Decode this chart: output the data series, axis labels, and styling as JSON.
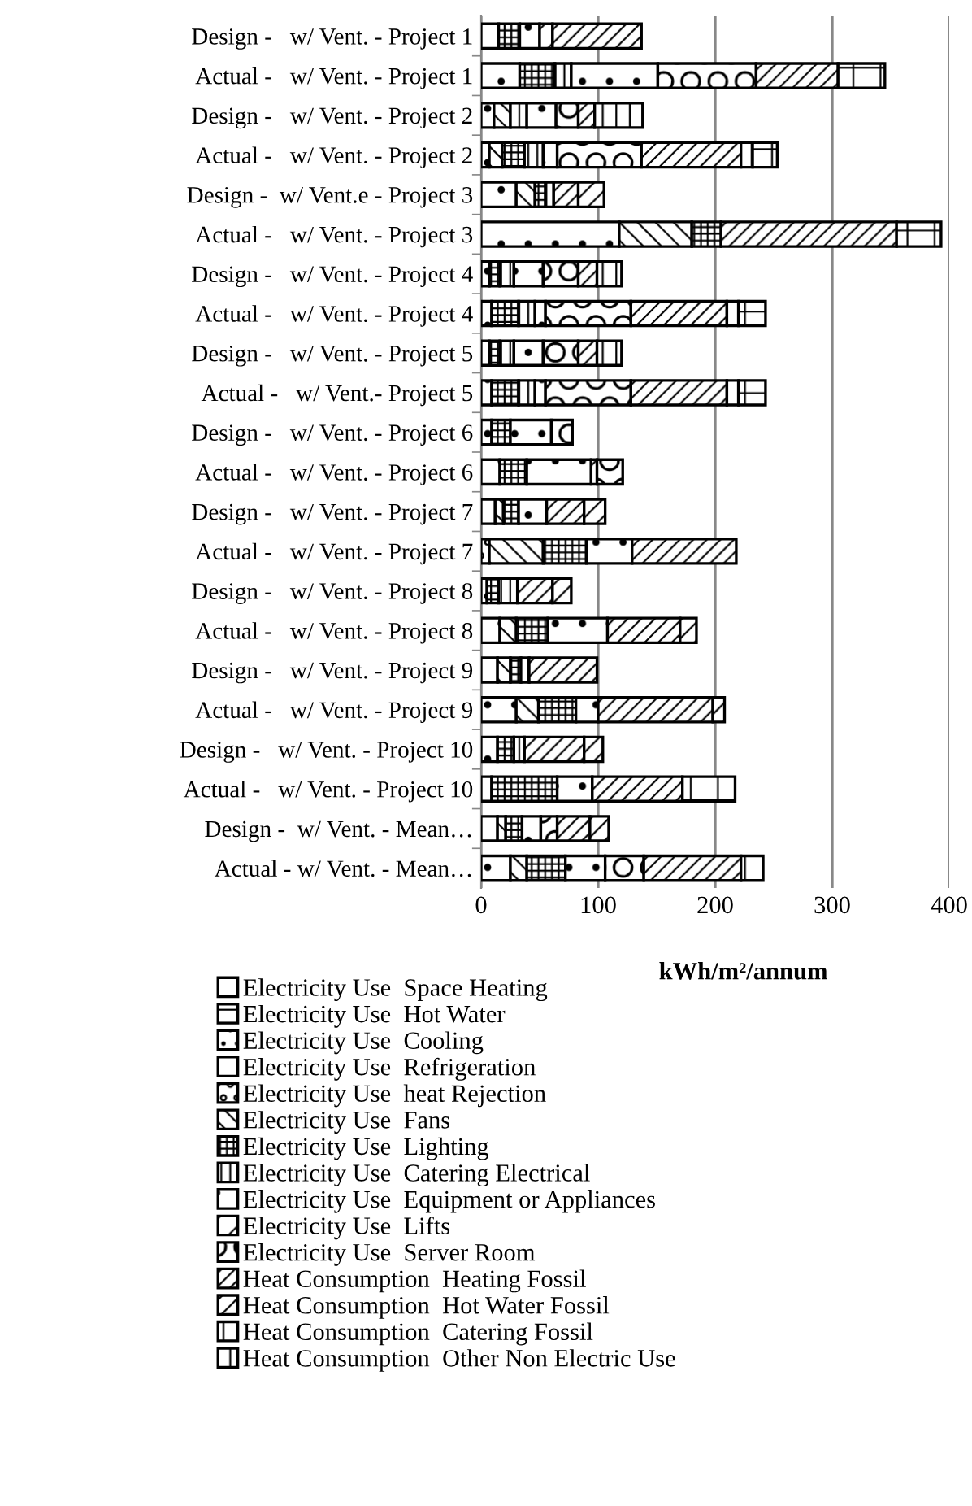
{
  "chart_data": {
    "type": "bar",
    "orientation": "horizontal",
    "stacked": true,
    "xlabel": "kWh/m²/annum",
    "xlim": [
      0,
      400
    ],
    "xticks": [
      0,
      100,
      200,
      300,
      400
    ],
    "grid": "x",
    "legend": "bottom",
    "categories": [
      "Design -   w/ Vent. - Project 1",
      "Actual -   w/ Vent. - Project 1",
      "Design -   w/ Vent. - Project 2",
      "Actual -   w/ Vent. - Project 2",
      "Design -  w/ Vent.e - Project 3",
      "Actual -   w/ Vent. - Project 3",
      "Design -   w/ Vent. - Project 4",
      "Actual -   w/ Vent. - Project 4",
      "Design -   w/ Vent. - Project 5",
      "Actual -   w/ Vent.- Project 5",
      "Design -   w/ Vent. - Project 6",
      "Actual -   w/ Vent. - Project 6",
      "Design -   w/ Vent. - Project 7",
      "Actual -   w/ Vent. - Project 7",
      "Design -   w/ Vent. - Project 8",
      "Actual -   w/ Vent. - Project 8",
      "Design -   w/ Vent. - Project 9",
      "Actual -   w/ Vent. - Project 9",
      "Design -   w/ Vent. - Project 10",
      "Actual -   w/ Vent. - Project 10",
      "Design -  w/ Vent. - Mean…",
      "Actual - w/ Vent. - Mean…"
    ],
    "series": [
      {
        "name": "Electricity Use  Space Heating",
        "color": "#000000",
        "values": [
          15,
          33,
          11,
          7,
          30,
          118,
          7,
          9,
          7,
          9,
          9,
          16,
          12,
          null,
          5,
          16,
          14,
          30,
          14,
          9,
          14,
          25
        ]
      },
      {
        "name": "Electricity Use  Hot Water",
        "color": "#000000",
        "values": [
          null,
          null,
          null,
          null,
          null,
          null,
          null,
          null,
          null,
          null,
          null,
          null,
          null,
          null,
          null,
          null,
          null,
          null,
          null,
          null,
          null,
          null
        ]
      },
      {
        "name": "Electricity Use  Cooling",
        "color": "#000000",
        "values": [
          null,
          null,
          null,
          null,
          null,
          null,
          null,
          null,
          null,
          null,
          null,
          null,
          null,
          null,
          null,
          null,
          null,
          null,
          null,
          null,
          null,
          null
        ]
      },
      {
        "name": "Electricity Use  Refrigeration",
        "color": "#000000",
        "values": [
          null,
          null,
          null,
          null,
          null,
          null,
          null,
          null,
          null,
          null,
          null,
          null,
          null,
          null,
          null,
          null,
          null,
          null,
          null,
          null,
          null,
          null
        ]
      },
      {
        "name": "Electricity Use  heat Rejection",
        "color": "#000000",
        "values": [
          null,
          null,
          null,
          null,
          null,
          null,
          null,
          null,
          null,
          null,
          null,
          null,
          null,
          7,
          null,
          null,
          null,
          null,
          null,
          null,
          null,
          null
        ]
      },
      {
        "name": "Electricity Use  Fans",
        "color": "#000000",
        "values": [
          null,
          null,
          14,
          11,
          16,
          62,
          null,
          null,
          null,
          null,
          null,
          null,
          7,
          46,
          null,
          14,
          11,
          19,
          null,
          null,
          7,
          14
        ]
      },
      {
        "name": "Electricity Use  Lighting",
        "color": "#000000",
        "values": [
          18,
          30,
          null,
          19,
          9,
          25,
          9,
          23,
          9,
          23,
          16,
          23,
          13,
          37,
          10,
          27,
          9,
          32,
          14,
          56,
          14,
          33
        ]
      },
      {
        "name": "Electricity Use  Catering Electrical",
        "color": "#000000",
        "values": [
          null,
          14,
          14,
          16,
          7,
          null,
          12,
          14,
          12,
          14,
          null,
          null,
          null,
          null,
          16,
          null,
          7,
          null,
          9,
          null,
          null,
          null
        ]
      },
      {
        "name": "Electricity Use  Equipment or Appliances",
        "color": "#000000",
        "values": [
          17,
          74,
          25,
          12,
          null,
          null,
          25,
          9,
          25,
          9,
          35,
          55,
          24,
          39,
          null,
          51,
          null,
          19,
          null,
          30,
          16,
          34
        ]
      },
      {
        "name": "Electricity Use  Lifts",
        "color": "#000000",
        "values": [
          11,
          null,
          null,
          null,
          null,
          null,
          null,
          null,
          null,
          null,
          null,
          5,
          null,
          null,
          null,
          null,
          null,
          null,
          null,
          null,
          null,
          null
        ]
      },
      {
        "name": "Electricity Use  Server Room",
        "color": "#000000",
        "values": [
          null,
          84,
          19,
          72,
          null,
          null,
          30,
          73,
          30,
          73,
          18,
          22,
          null,
          null,
          null,
          null,
          null,
          null,
          null,
          null,
          14,
          33
        ]
      },
      {
        "name": "Heat Consumption  Heating Fossil",
        "color": "#000000",
        "values": [
          76,
          70,
          14,
          85,
          21,
          150,
          16,
          82,
          16,
          82,
          null,
          null,
          32,
          89,
          30,
          62,
          58,
          98,
          51,
          77,
          28,
          83
        ]
      },
      {
        "name": "Heat Consumption  Hot Water Fossil",
        "color": "#000000",
        "values": [
          null,
          null,
          null,
          null,
          22,
          null,
          null,
          null,
          null,
          null,
          null,
          null,
          18,
          null,
          16,
          14,
          null,
          10,
          16,
          null,
          16,
          null
        ]
      },
      {
        "name": "Heat Consumption  Catering Fossil",
        "color": "#000000",
        "values": [
          null,
          null,
          41,
          10,
          null,
          null,
          21,
          10,
          21,
          10,
          null,
          null,
          null,
          null,
          null,
          null,
          null,
          null,
          null,
          null,
          null,
          null
        ]
      },
      {
        "name": "Heat Consumption  Other Non Electric Use",
        "color": "#000000",
        "values": [
          null,
          40,
          null,
          21,
          null,
          38,
          null,
          23,
          null,
          23,
          null,
          null,
          null,
          null,
          null,
          null,
          null,
          null,
          null,
          45,
          null,
          19
        ]
      }
    ]
  }
}
